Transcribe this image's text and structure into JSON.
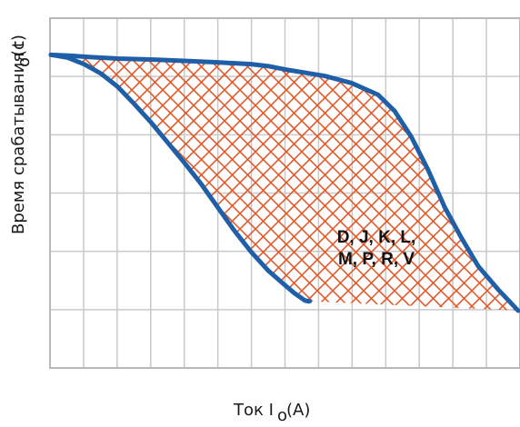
{
  "chart_data": {
    "type": "area",
    "title": "",
    "xlabel": {
      "prefix": "Ток I",
      "subscript": "o",
      "suffix": "(A)"
    },
    "ylabel": {
      "prefix": "Время срабатывания t",
      "subscript": "o",
      "suffix": "(c)"
    },
    "xlim": [
      0,
      14
    ],
    "ylim": [
      0,
      6
    ],
    "grid": true,
    "region_label": {
      "lines": [
        "D, J, K, L,",
        "M, P, R, V"
      ],
      "x": 9.6,
      "y": 2.55
    },
    "series": [
      {
        "x": [
          0,
          0.6,
          1.2,
          2.0,
          3.0,
          4.0,
          5.0,
          6.0,
          6.5,
          7.0,
          7.6,
          8.2,
          9.0,
          9.8,
          10.3,
          10.8,
          11.3,
          11.8,
          12.3,
          12.8,
          13.4,
          14.0
        ],
        "y": [
          5.8,
          5.78,
          5.75,
          5.72,
          5.7,
          5.67,
          5.64,
          5.6,
          5.56,
          5.49,
          5.42,
          5.35,
          5.2,
          4.95,
          4.6,
          4.05,
          3.35,
          2.55,
          1.9,
          1.3,
          0.8,
          0.35
        ]
      },
      {
        "x": [
          0,
          0.5,
          1.0,
          1.5,
          2.0,
          2.5,
          3.0,
          3.5,
          4.0,
          4.5,
          5.0,
          5.5,
          6.0,
          6.5,
          7.0,
          7.3,
          7.5,
          7.6,
          7.7,
          7.75
        ],
        "y": [
          5.8,
          5.74,
          5.6,
          5.4,
          5.12,
          4.75,
          4.36,
          3.93,
          3.5,
          3.05,
          2.55,
          2.05,
          1.6,
          1.21,
          0.9,
          0.72,
          0.62,
          0.57,
          0.55,
          0.55
        ]
      }
    ],
    "colors": {
      "curve": "#1f5fa8",
      "hatch": "#e05a2c",
      "grid": "#c9c9c9",
      "frame": "#b8b8b8"
    }
  }
}
